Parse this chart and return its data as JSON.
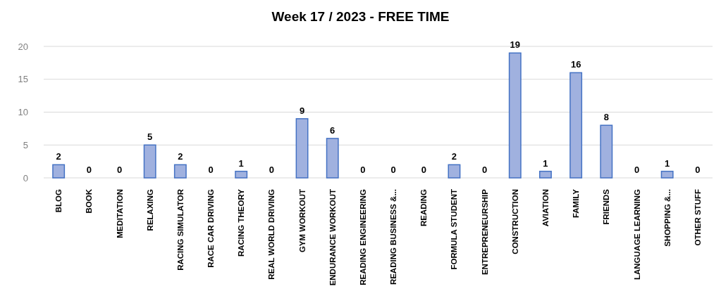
{
  "chart_data": {
    "type": "bar",
    "title": "Week 17 / 2023 - FREE TIME",
    "categories": [
      "BLOG",
      "BOOK",
      "MEDITATION",
      "RELAXING",
      "RACING SIMULATOR",
      "RACE CAR DRIVING",
      "RACING THEORY",
      "REAL WORLD DRIVING",
      "GYM WORKOUT",
      "ENDURANCE WORKOUT",
      "READING ENGINEERING",
      "READING BUSINESS &...",
      "READING",
      "FORMULA STUDENT",
      "ENTREPRENEURSHIP",
      "CONSTRUCTION",
      "AVIATION",
      "FAMILY",
      "FRIENDS",
      "LANGUAGE LEARNING",
      "SHOPPING &...",
      "OTHER STUFF"
    ],
    "values": [
      2,
      0,
      0,
      5,
      2,
      0,
      1,
      0,
      9,
      6,
      0,
      0,
      0,
      2,
      0,
      19,
      1,
      16,
      8,
      0,
      1,
      0
    ],
    "color": "#a0b1df",
    "ylim": [
      0,
      20
    ],
    "yticks": [
      0,
      5,
      10,
      15,
      20
    ],
    "grid": "y",
    "data_labels": true
  }
}
